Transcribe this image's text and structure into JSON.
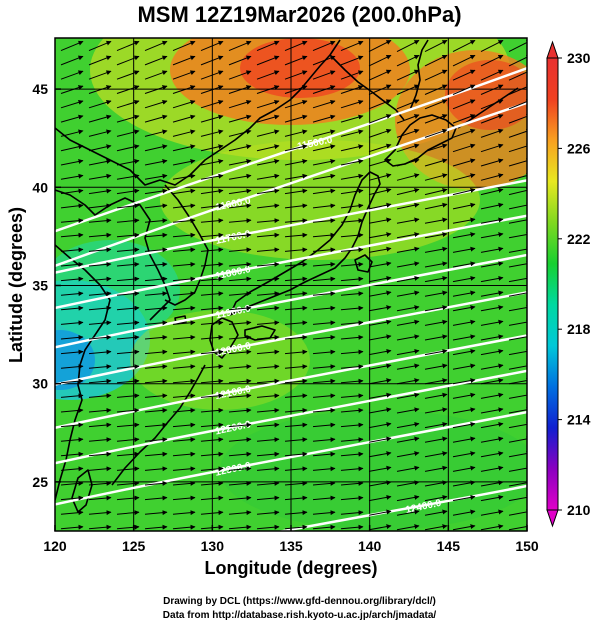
{
  "title": "MSM 12Z19Mar2026 (200.0hPa)",
  "credit_line1": "Drawing by DCL (https://www.gfd-dennou.org/library/dcl/)",
  "credit_line2": "Data from http://database.rish.kyoto-u.ac.jp/arch/jmadata/",
  "chart_data": {
    "type": "heatmap",
    "xlabel": "Longitude (degrees)",
    "ylabel": "Latitude  (degrees)",
    "xlim": [
      120,
      150
    ],
    "ylim": [
      22.5,
      47.6
    ],
    "x_ticks": [
      120,
      125,
      130,
      135,
      140,
      145,
      150
    ],
    "y_ticks": [
      25,
      30,
      35,
      40,
      45
    ],
    "grid": true,
    "colorbar": {
      "min": 210,
      "max": 230,
      "ticks": [
        210,
        214,
        218,
        222,
        226,
        230
      ],
      "colors": [
        "#e000c8",
        "#8a00c0",
        "#1020d0",
        "#0070e0",
        "#00c8d8",
        "#00d8a0",
        "#18d030",
        "#80d820",
        "#e8e820",
        "#f8a020",
        "#f04020",
        "#e83030"
      ]
    },
    "field_samples": [
      {
        "lon": 120,
        "lat": 32,
        "value": 218
      },
      {
        "lon": 120,
        "lat": 40,
        "value": 222
      },
      {
        "lon": 130,
        "lat": 25,
        "value": 223
      },
      {
        "lon": 135,
        "lat": 46,
        "value": 228
      },
      {
        "lon": 140,
        "lat": 40,
        "value": 224
      },
      {
        "lon": 148,
        "lat": 44,
        "value": 227
      },
      {
        "lon": 145,
        "lat": 27,
        "value": 222
      }
    ],
    "height_contours": [
      {
        "label": "11500.0",
        "lon": 136.5,
        "lat": 42.3
      },
      {
        "label": "11600.0",
        "lon": 131.3,
        "lat": 39.2
      },
      {
        "label": "11700.0",
        "lon": 131.3,
        "lat": 37.5
      },
      {
        "label": "11800.0",
        "lon": 131.3,
        "lat": 35.7
      },
      {
        "label": "11900.0",
        "lon": 131.3,
        "lat": 33.7
      },
      {
        "label": "12000.0",
        "lon": 131.3,
        "lat": 31.8
      },
      {
        "label": "12100.0",
        "lon": 131.3,
        "lat": 29.6
      },
      {
        "label": "12200.0",
        "lon": 131.3,
        "lat": 27.8
      },
      {
        "label": "12300.0",
        "lon": 131.3,
        "lat": 25.7
      },
      {
        "label": "12400.0",
        "lon": 143.4,
        "lat": 23.8
      }
    ],
    "wind": "westerly"
  }
}
